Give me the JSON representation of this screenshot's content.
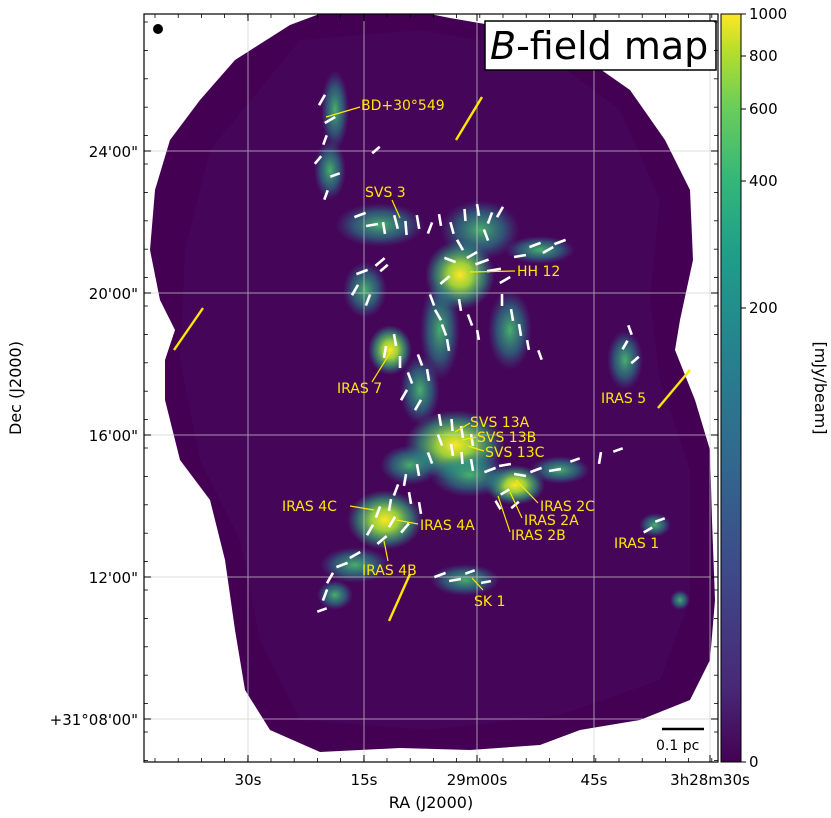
{
  "colors": {
    "background_map": "#440154",
    "emission_mid": "#21918c",
    "emission_high": "#fde725",
    "vectors": "#ffffff",
    "labels": "#ffe700",
    "axis": "#000000",
    "grid": "#cfcfcf"
  },
  "title": {
    "prefix": "B",
    "rest": "-field map"
  },
  "axes": {
    "xlabel": "RA (J2000)",
    "ylabel": "Dec (J2000)",
    "xticks": [
      "30s",
      "15s",
      "29m00s",
      "45s",
      "3h28m30s"
    ],
    "yticks": [
      "24'00\"",
      "20'00\"",
      "16'00\"",
      "12'00\"",
      "+31°08'00\""
    ]
  },
  "colorbar": {
    "label": "[mJy/beam]",
    "ticks": [
      "1000",
      "800",
      "600",
      "400",
      "200",
      "0"
    ],
    "scale": "nonlinear"
  },
  "scale_bar": {
    "label": "0.1 pc"
  },
  "beam": "filled-circle",
  "labels": [
    "BD+30°549",
    "SVS 3",
    "HH 12",
    "IRAS 7",
    "IRAS 5",
    "SVS 13A",
    "SVS 13B",
    "SVS 13C",
    "IRAS 4C",
    "IRAS 4A",
    "IRAS 2C",
    "IRAS 2A",
    "IRAS 2B",
    "IRAS 1",
    "IRAS 4B",
    "SK 1"
  ]
}
